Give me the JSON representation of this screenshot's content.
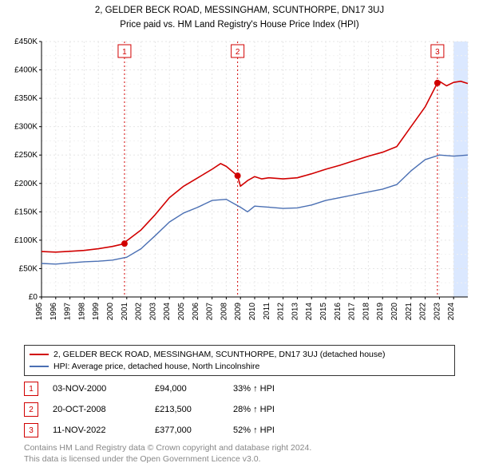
{
  "title_line1": "2, GELDER BECK ROAD, MESSINGHAM, SCUNTHORPE, DN17 3UJ",
  "title_line2": "Price paid vs. HM Land Registry's House Price Index (HPI)",
  "title_fontsize": 11.5,
  "chart": {
    "type": "line",
    "background_color": "#ffffff",
    "grid_color_major": "#e6e6e6",
    "grid_color_minor": "#f2f2f2",
    "grid_dash": "2,3",
    "axis_color": "#000000",
    "tick_fontsize": 10,
    "tick_color": "#000000",
    "y": {
      "label_prefix": "£",
      "min": 0,
      "max": 450000,
      "step": 50000,
      "ticks": [
        "£0",
        "£50K",
        "£100K",
        "£150K",
        "£200K",
        "£250K",
        "£300K",
        "£350K",
        "£400K",
        "£450K"
      ]
    },
    "x": {
      "min": 1995,
      "max": 2025,
      "step": 1,
      "ticks": [
        "1995",
        "1996",
        "1997",
        "1998",
        "1999",
        "2000",
        "2001",
        "2002",
        "2003",
        "2004",
        "2005",
        "2006",
        "2007",
        "2008",
        "2009",
        "2010",
        "2011",
        "2012",
        "2013",
        "2014",
        "2015",
        "2016",
        "2017",
        "2018",
        "2019",
        "2020",
        "2021",
        "2022",
        "2023",
        "2024"
      ],
      "end_shade_from": 2024,
      "end_shade_color": "#dbe8ff"
    },
    "series": [
      {
        "name": "property",
        "label": "2, GELDER BECK ROAD, MESSINGHAM, SCUNTHORPE, DN17 3UJ (detached house)",
        "color": "#d10000",
        "line_width": 1.6,
        "points": [
          [
            1995,
            80000
          ],
          [
            1996,
            79000
          ],
          [
            1997,
            80500
          ],
          [
            1998,
            82000
          ],
          [
            1999,
            85000
          ],
          [
            2000,
            89000
          ],
          [
            2000.84,
            94000
          ],
          [
            2001,
            99000
          ],
          [
            2002,
            118000
          ],
          [
            2003,
            145000
          ],
          [
            2004,
            175000
          ],
          [
            2005,
            195000
          ],
          [
            2006,
            210000
          ],
          [
            2007,
            225000
          ],
          [
            2007.6,
            235000
          ],
          [
            2008,
            230000
          ],
          [
            2008.8,
            213500
          ],
          [
            2009,
            195000
          ],
          [
            2009.5,
            205000
          ],
          [
            2010,
            212000
          ],
          [
            2010.5,
            208000
          ],
          [
            2011,
            210000
          ],
          [
            2012,
            208000
          ],
          [
            2013,
            210000
          ],
          [
            2014,
            217000
          ],
          [
            2015,
            225000
          ],
          [
            2016,
            232000
          ],
          [
            2017,
            240000
          ],
          [
            2018,
            248000
          ],
          [
            2019,
            255000
          ],
          [
            2020,
            265000
          ],
          [
            2021,
            300000
          ],
          [
            2022,
            335000
          ],
          [
            2022.86,
            377000
          ],
          [
            2023,
            380000
          ],
          [
            2023.5,
            372000
          ],
          [
            2024,
            378000
          ],
          [
            2024.5,
            380000
          ],
          [
            2025,
            376000
          ]
        ]
      },
      {
        "name": "hpi",
        "label": "HPI: Average price, detached house, North Lincolnshire",
        "color": "#4a6fb3",
        "line_width": 1.4,
        "points": [
          [
            1995,
            59000
          ],
          [
            1996,
            58000
          ],
          [
            1997,
            60000
          ],
          [
            1998,
            62000
          ],
          [
            1999,
            63000
          ],
          [
            2000,
            65000
          ],
          [
            2001,
            70000
          ],
          [
            2002,
            85000
          ],
          [
            2003,
            108000
          ],
          [
            2004,
            132000
          ],
          [
            2005,
            148000
          ],
          [
            2006,
            158000
          ],
          [
            2007,
            170000
          ],
          [
            2008,
            172000
          ],
          [
            2009,
            158000
          ],
          [
            2009.5,
            150000
          ],
          [
            2010,
            160000
          ],
          [
            2011,
            158000
          ],
          [
            2012,
            156000
          ],
          [
            2013,
            157000
          ],
          [
            2014,
            162000
          ],
          [
            2015,
            170000
          ],
          [
            2016,
            175000
          ],
          [
            2017,
            180000
          ],
          [
            2018,
            185000
          ],
          [
            2019,
            190000
          ],
          [
            2020,
            198000
          ],
          [
            2021,
            222000
          ],
          [
            2022,
            242000
          ],
          [
            2023,
            250000
          ],
          [
            2024,
            248000
          ],
          [
            2025,
            250000
          ]
        ]
      }
    ],
    "sale_markers": [
      {
        "n": 1,
        "x": 2000.84,
        "y": 94000,
        "dashed_line_color": "#d10000"
      },
      {
        "n": 2,
        "x": 2008.8,
        "y": 213500,
        "dashed_line_color": "#d10000"
      },
      {
        "n": 3,
        "x": 2022.86,
        "y": 377000,
        "dashed_line_color": "#d10000"
      }
    ],
    "marker_box_border": "#d10000",
    "marker_box_fill": "#ffffff",
    "marker_box_text_color": "#d10000",
    "marker_box_fontsize": 10,
    "point_marker_fill": "#d10000",
    "point_marker_radius": 4
  },
  "legend": {
    "border_color": "#333333",
    "rows": [
      {
        "color": "#d10000",
        "text": "2, GELDER BECK ROAD, MESSINGHAM, SCUNTHORPE, DN17 3UJ (detached house)"
      },
      {
        "color": "#4a6fb3",
        "text": "HPI: Average price, detached house, North Lincolnshire"
      }
    ]
  },
  "callouts": [
    {
      "n": "1",
      "date": "03-NOV-2000",
      "price": "£94,000",
      "pct": "33% ↑ HPI"
    },
    {
      "n": "2",
      "date": "20-OCT-2008",
      "price": "£213,500",
      "pct": "28% ↑ HPI"
    },
    {
      "n": "3",
      "date": "11-NOV-2022",
      "price": "£377,000",
      "pct": "52% ↑ HPI"
    }
  ],
  "callout_marker_color": "#d10000",
  "footnote_line1": "Contains HM Land Registry data © Crown copyright and database right 2024.",
  "footnote_line2": "This data is licensed under the Open Government Licence v3.0.",
  "footnote_color": "#888888"
}
